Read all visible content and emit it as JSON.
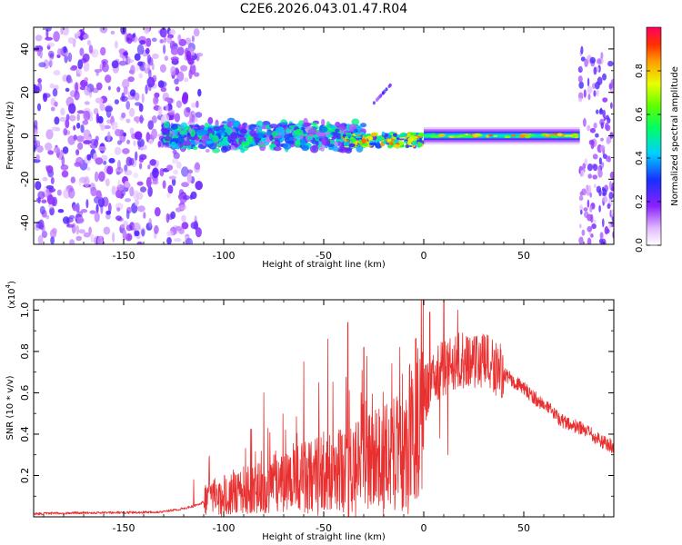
{
  "figure_title": "C2E6.2026.043.01.47.R04",
  "colors": {
    "snr_line": "#e83030",
    "frame": "#000000",
    "spectrogram_background": "#ffffff"
  },
  "chart_data": [
    {
      "type": "heatmap",
      "title": "C2E6.2026.043.01.47.R04",
      "xlabel": "Height of straight line (km)",
      "ylabel": "Frequency (Hz)",
      "xlim": [
        -195,
        95
      ],
      "ylim": [
        -50,
        50
      ],
      "xticks": [
        -150,
        -100,
        -50,
        0,
        50
      ],
      "xtick_labels": [
        "-150",
        "-100",
        "-50",
        "0",
        "50"
      ],
      "yticks": [
        -40,
        -20,
        0,
        20,
        40
      ],
      "ytick_labels": [
        "-40",
        "-20",
        "0",
        "20",
        "40"
      ],
      "colorbar": {
        "label": "Normalized spectral amplitude",
        "range": [
          0.0,
          1.0
        ],
        "ticks": [
          0.0,
          0.2,
          0.4,
          0.6,
          0.8
        ],
        "tick_labels": [
          "0.0",
          "0.2",
          "0.4",
          "0.6",
          "0.8"
        ]
      },
      "features": [
        {
          "name": "scattered noise",
          "x_range": [
            -195,
            -112
          ],
          "freq_range": [
            -50,
            50
          ],
          "amplitude": 0.2
        },
        {
          "name": "noisy band",
          "x_range": [
            -130,
            -30
          ],
          "freq_center": 0,
          "freq_halfwidth": 6,
          "amplitude": 0.45
        },
        {
          "name": "narrowing band",
          "x_range": [
            -40,
            0
          ],
          "freq_center": -2,
          "freq_halfwidth": 3,
          "amplitude": 0.7
        },
        {
          "name": "stable band",
          "x_range": [
            0,
            78
          ],
          "freq_center": 0,
          "freq_halfwidth": 2,
          "amplitude": 0.5
        },
        {
          "name": "upper artifact",
          "x_range": [
            -25,
            -15
          ],
          "freq_range": [
            15,
            25
          ],
          "amplitude": 0.2
        },
        {
          "name": "end noise",
          "x_range": [
            78,
            95
          ],
          "freq_range": [
            -50,
            40
          ],
          "amplitude": 0.2
        }
      ]
    },
    {
      "type": "line",
      "xlabel": "Height of straight line (km)",
      "ylabel": "SNR (10 * v/v)",
      "yscale_label": "(x10",
      "yscale_exponent": "4",
      "xlim": [
        -195,
        95
      ],
      "ylim": [
        0,
        1.05
      ],
      "xticks": [
        -150,
        -100,
        -50,
        0,
        50
      ],
      "xtick_labels": [
        "-150",
        "-100",
        "-50",
        "0",
        "50"
      ],
      "yticks": [
        0.2,
        0.4,
        0.6,
        0.8,
        1.0
      ],
      "ytick_labels": [
        "0.2",
        "0.4",
        "0.6",
        "0.8",
        "1.0"
      ],
      "series": [
        {
          "name": "SNR",
          "x": [
            -195,
            -170,
            -150,
            -130,
            -120,
            -112,
            -108,
            -100,
            -90,
            -80,
            -70,
            -60,
            -50,
            -40,
            -30,
            -20,
            -10,
            -5,
            0,
            5,
            10,
            15,
            20,
            25,
            30,
            35,
            40,
            50,
            60,
            70,
            80,
            90,
            95
          ],
          "y": [
            0.015,
            0.02,
            0.02,
            0.025,
            0.04,
            0.06,
            0.09,
            0.11,
            0.13,
            0.15,
            0.17,
            0.19,
            0.21,
            0.23,
            0.25,
            0.29,
            0.35,
            0.45,
            0.58,
            0.68,
            0.72,
            0.75,
            0.76,
            0.76,
            0.75,
            0.73,
            0.69,
            0.62,
            0.54,
            0.46,
            0.42,
            0.36,
            0.34
          ]
        }
      ],
      "spikes": [
        {
          "x": -38,
          "y": 0.94
        },
        {
          "x": -48,
          "y": 0.86
        },
        {
          "x": -30,
          "y": 0.82
        },
        {
          "x": -12,
          "y": 0.82
        },
        {
          "x": 3,
          "y": 0.99
        },
        {
          "x": 10,
          "y": 1.05
        },
        {
          "x": 17,
          "y": 1.0
        },
        {
          "x": 8,
          "y": 0.38
        },
        {
          "x": 12,
          "y": 0.3
        },
        {
          "x": -80,
          "y": 0.6
        },
        {
          "x": -115,
          "y": 0.18
        },
        {
          "x": -60,
          "y": 0.75
        }
      ]
    }
  ]
}
